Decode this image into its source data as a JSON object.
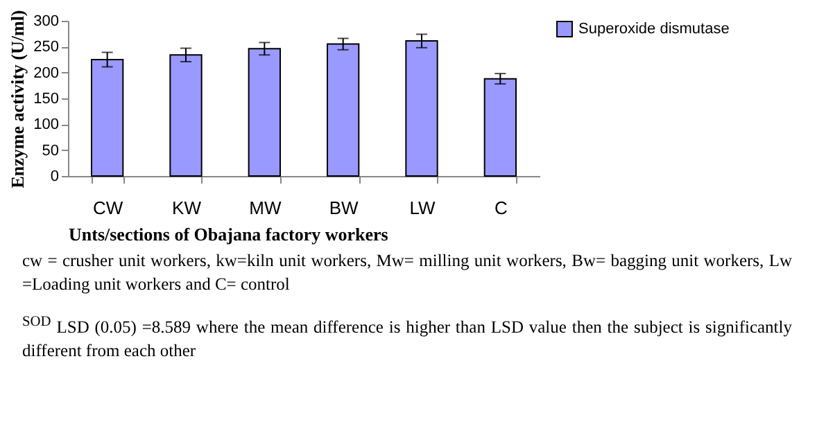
{
  "chart_data": {
    "type": "bar",
    "xlabel": "Unts/sections of Obajana factory workers",
    "ylabel": "Enzyme activity (U/ml)",
    "categories": [
      "CW",
      "KW",
      "MW",
      "BW",
      "LW",
      "C"
    ],
    "series": [
      {
        "name": "Superoxide dismutase",
        "color": "#9999ff",
        "values": [
          225,
          234,
          246,
          255,
          261,
          188
        ],
        "errors": [
          14,
          13,
          12,
          11,
          13,
          10
        ]
      }
    ],
    "ylim": [
      0,
      300
    ],
    "yticks": [
      0,
      50,
      100,
      150,
      200,
      250,
      300
    ],
    "grid": false,
    "legend": "right",
    "annotations": [
      "cw  = crusher unit workers, kw=kiln unit workers, Mw= milling unit workers, Bw= bagging unit workers, Lw =Loading unit workers and    C= control",
      "$^{SOD}$ LSD (0.05) =8.589 where the mean difference is higher than LSD value then the subject is significantly different from each other"
    ]
  }
}
